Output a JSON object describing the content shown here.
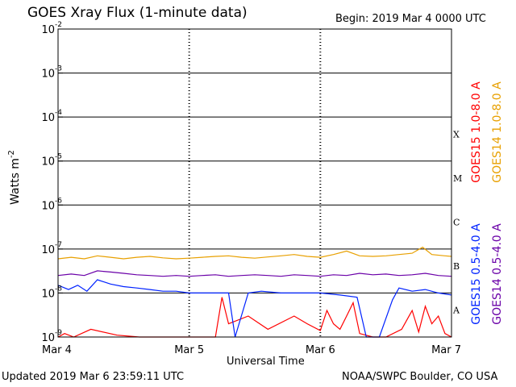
{
  "header": {
    "title": "GOES Xray Flux (1-minute data)",
    "begin": "Begin:  2019 Mar 4 0000 UTC"
  },
  "footer": {
    "updated": "Updated 2019 Mar  6 23:59:11 UTC",
    "credit": "NOAA/SWPC Boulder, CO USA"
  },
  "colors": {
    "goes15_long": "#ff0000",
    "goes14_long": "#e8a000",
    "goes15_short": "#0022ff",
    "goes14_short": "#6a00a8"
  },
  "chart_data": {
    "type": "line",
    "title": "GOES Xray Flux (1-minute data)",
    "xlabel": "Universal Time",
    "ylabel_base": "Watts m",
    "ylabel_exp": "-2",
    "y_scale": "log",
    "ylim": [
      1e-09,
      0.01
    ],
    "xlim_days": [
      0,
      3
    ],
    "x_ticks": [
      {
        "day": 0,
        "label": "Mar 4"
      },
      {
        "day": 1,
        "label": "Mar 5"
      },
      {
        "day": 2,
        "label": "Mar 6"
      },
      {
        "day": 3,
        "label": "Mar 7"
      }
    ],
    "y_ticks": [
      {
        "exp": -2,
        "label": "10"
      },
      {
        "exp": -3,
        "label": "10"
      },
      {
        "exp": -4,
        "label": "10"
      },
      {
        "exp": -5,
        "label": "10"
      },
      {
        "exp": -6,
        "label": "10"
      },
      {
        "exp": -7,
        "label": "10"
      },
      {
        "exp": -8,
        "label": "10"
      },
      {
        "exp": -9,
        "label": "10"
      }
    ],
    "flare_classes": [
      {
        "label": "X",
        "exp": -4
      },
      {
        "label": "M",
        "exp": -5
      },
      {
        "label": "C",
        "exp": -6
      },
      {
        "label": "B",
        "exp": -7
      },
      {
        "label": "A",
        "exp": -8
      }
    ],
    "grid": "horizontal lines at each decade; dotted vertical lines at day boundaries",
    "legend_placement": "right, vertical",
    "series": [
      {
        "name": "GOES15 1.0-8.0 A",
        "color": "#ff0000",
        "points": [
          [
            0.0,
            1e-09
          ],
          [
            0.05,
            1.2e-09
          ],
          [
            0.12,
            1e-09
          ],
          [
            0.25,
            1.5e-09
          ],
          [
            0.45,
            1.1e-09
          ],
          [
            0.62,
            1e-09
          ],
          [
            1.2,
            1e-09
          ],
          [
            1.25,
            8e-09
          ],
          [
            1.3,
            2e-09
          ],
          [
            1.45,
            3e-09
          ],
          [
            1.6,
            1.5e-09
          ],
          [
            1.8,
            3e-09
          ],
          [
            1.9,
            2e-09
          ],
          [
            2.0,
            1.4e-09
          ],
          [
            2.05,
            4e-09
          ],
          [
            2.1,
            2e-09
          ],
          [
            2.15,
            1.5e-09
          ],
          [
            2.2,
            3e-09
          ],
          [
            2.25,
            6e-09
          ],
          [
            2.3,
            1.2e-09
          ],
          [
            2.4,
            1e-09
          ],
          [
            2.5,
            1e-09
          ],
          [
            2.62,
            1.5e-09
          ],
          [
            2.7,
            4e-09
          ],
          [
            2.75,
            1.3e-09
          ],
          [
            2.8,
            5e-09
          ],
          [
            2.85,
            2e-09
          ],
          [
            2.9,
            3e-09
          ],
          [
            2.95,
            1.2e-09
          ],
          [
            3.0,
            1e-09
          ]
        ]
      },
      {
        "name": "GOES14 1.0-8.0 A",
        "color": "#e8a000",
        "points": [
          [
            0.0,
            6e-08
          ],
          [
            0.1,
            6.5e-08
          ],
          [
            0.2,
            6e-08
          ],
          [
            0.3,
            7e-08
          ],
          [
            0.4,
            6.5e-08
          ],
          [
            0.5,
            6e-08
          ],
          [
            0.6,
            6.5e-08
          ],
          [
            0.7,
            6.8e-08
          ],
          [
            0.8,
            6.3e-08
          ],
          [
            0.9,
            6e-08
          ],
          [
            1.0,
            6.2e-08
          ],
          [
            1.1,
            6.5e-08
          ],
          [
            1.2,
            6.8e-08
          ],
          [
            1.3,
            7e-08
          ],
          [
            1.4,
            6.5e-08
          ],
          [
            1.5,
            6.2e-08
          ],
          [
            1.6,
            6.6e-08
          ],
          [
            1.7,
            7e-08
          ],
          [
            1.8,
            7.5e-08
          ],
          [
            1.9,
            6.8e-08
          ],
          [
            2.0,
            6.5e-08
          ],
          [
            2.1,
            7.5e-08
          ],
          [
            2.2,
            9e-08
          ],
          [
            2.3,
            7e-08
          ],
          [
            2.4,
            6.8e-08
          ],
          [
            2.5,
            7e-08
          ],
          [
            2.6,
            7.5e-08
          ],
          [
            2.7,
            8e-08
          ],
          [
            2.78,
            1.1e-07
          ],
          [
            2.85,
            7.5e-08
          ],
          [
            2.95,
            7e-08
          ],
          [
            3.0,
            6.8e-08
          ]
        ]
      },
      {
        "name": "GOES15 0.5-4.0 A",
        "color": "#0022ff",
        "points": [
          [
            0.0,
            1.5e-08
          ],
          [
            0.08,
            1.2e-08
          ],
          [
            0.15,
            1.5e-08
          ],
          [
            0.22,
            1.1e-08
          ],
          [
            0.3,
            2e-08
          ],
          [
            0.4,
            1.6e-08
          ],
          [
            0.5,
            1.4e-08
          ],
          [
            0.6,
            1.3e-08
          ],
          [
            0.7,
            1.2e-08
          ],
          [
            0.8,
            1.1e-08
          ],
          [
            0.9,
            1.1e-08
          ],
          [
            1.0,
            1e-08
          ],
          [
            1.1,
            1e-08
          ],
          [
            1.2,
            1e-08
          ],
          [
            1.3,
            1e-08
          ],
          [
            1.35,
            1e-09
          ],
          [
            1.45,
            1e-08
          ],
          [
            1.55,
            1.1e-08
          ],
          [
            1.7,
            1e-08
          ],
          [
            1.85,
            1e-08
          ],
          [
            2.0,
            1e-08
          ],
          [
            2.15,
            9e-09
          ],
          [
            2.28,
            8e-09
          ],
          [
            2.35,
            1e-09
          ],
          [
            2.45,
            1e-09
          ],
          [
            2.55,
            7e-09
          ],
          [
            2.6,
            1.3e-08
          ],
          [
            2.7,
            1.1e-08
          ],
          [
            2.8,
            1.2e-08
          ],
          [
            2.9,
            1e-08
          ],
          [
            3.0,
            9e-09
          ]
        ]
      },
      {
        "name": "GOES14 0.5-4.0 A",
        "color": "#6a00a8",
        "points": [
          [
            0.0,
            2.5e-08
          ],
          [
            0.1,
            2.7e-08
          ],
          [
            0.2,
            2.5e-08
          ],
          [
            0.3,
            3.2e-08
          ],
          [
            0.4,
            3e-08
          ],
          [
            0.5,
            2.8e-08
          ],
          [
            0.6,
            2.6e-08
          ],
          [
            0.7,
            2.5e-08
          ],
          [
            0.8,
            2.4e-08
          ],
          [
            0.9,
            2.5e-08
          ],
          [
            1.0,
            2.4e-08
          ],
          [
            1.1,
            2.5e-08
          ],
          [
            1.2,
            2.6e-08
          ],
          [
            1.3,
            2.4e-08
          ],
          [
            1.4,
            2.5e-08
          ],
          [
            1.5,
            2.6e-08
          ],
          [
            1.6,
            2.5e-08
          ],
          [
            1.7,
            2.4e-08
          ],
          [
            1.8,
            2.6e-08
          ],
          [
            1.9,
            2.5e-08
          ],
          [
            2.0,
            2.4e-08
          ],
          [
            2.1,
            2.6e-08
          ],
          [
            2.2,
            2.5e-08
          ],
          [
            2.3,
            2.8e-08
          ],
          [
            2.4,
            2.6e-08
          ],
          [
            2.5,
            2.7e-08
          ],
          [
            2.6,
            2.5e-08
          ],
          [
            2.7,
            2.6e-08
          ],
          [
            2.8,
            2.8e-08
          ],
          [
            2.9,
            2.5e-08
          ],
          [
            3.0,
            2.4e-08
          ]
        ]
      }
    ]
  }
}
